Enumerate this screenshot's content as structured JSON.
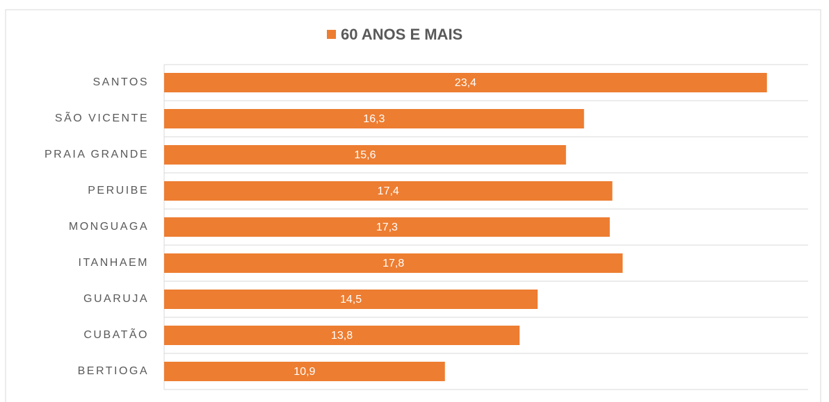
{
  "chart_data": {
    "type": "bar",
    "orientation": "horizontal",
    "categories": [
      "SANTOS",
      "SÃO VICENTE",
      "PRAIA GRANDE",
      "PERUIBE",
      "MONGUAGA",
      "ITANHAEM",
      "GUARUJA",
      "CUBATÃO",
      "BERTIOGA"
    ],
    "series": [
      {
        "name": "60 ANOS E MAIS",
        "color": "#ed7d31",
        "values": [
          23.4,
          16.3,
          15.6,
          17.4,
          17.3,
          17.8,
          14.5,
          13.8,
          10.9
        ],
        "value_labels": [
          "23,4",
          "16,3",
          "15,6",
          "17,4",
          "17,3",
          "17,8",
          "14,5",
          "13,8",
          "10,9"
        ]
      }
    ],
    "xlim": [
      0,
      25
    ],
    "legend": "top"
  }
}
